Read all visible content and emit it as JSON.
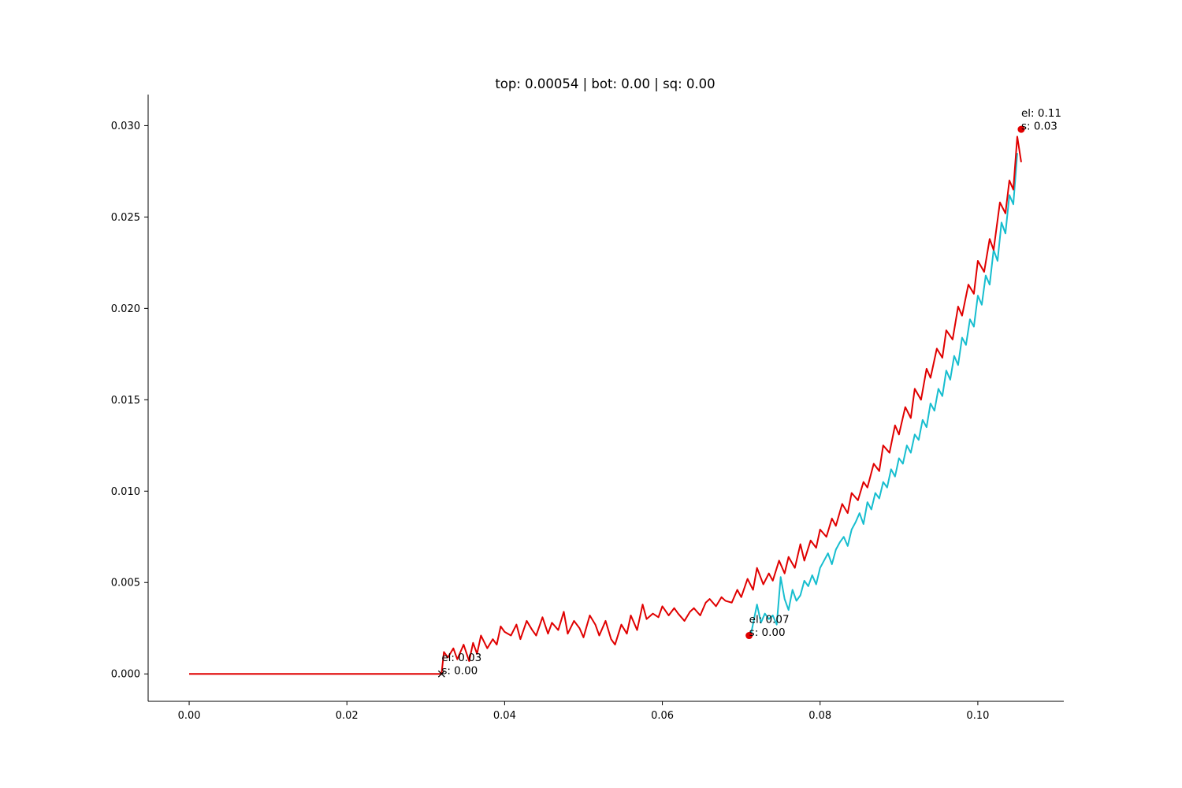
{
  "chart_data": {
    "type": "line",
    "title": "top: 0.00054 | bot: 0.00 | sq: 0.00",
    "xlabel": "",
    "ylabel": "",
    "xlim": [
      -0.0052,
      0.1109
    ],
    "ylim": [
      -0.0015,
      0.0317
    ],
    "x_ticks": [
      0.0,
      0.02,
      0.04,
      0.06,
      0.08,
      0.1
    ],
    "x_tick_labels": [
      "0.00",
      "0.02",
      "0.04",
      "0.06",
      "0.08",
      "0.10"
    ],
    "y_ticks": [
      0.0,
      0.005,
      0.01,
      0.015,
      0.02,
      0.025,
      0.03
    ],
    "y_tick_labels": [
      "0.000",
      "0.005",
      "0.010",
      "0.015",
      "0.020",
      "0.025",
      "0.030"
    ],
    "grid": false,
    "legend": "none",
    "spines": "left-bottom",
    "series": [
      {
        "color": "#e00000",
        "x": [
          0.0,
          0.008,
          0.016,
          0.024,
          0.032,
          0.0323,
          0.0328,
          0.0335,
          0.034,
          0.0348,
          0.0355,
          0.036,
          0.0365,
          0.037,
          0.0378,
          0.0385,
          0.039,
          0.0395,
          0.04,
          0.0408,
          0.0415,
          0.042,
          0.0428,
          0.0435,
          0.044,
          0.0448,
          0.0455,
          0.046,
          0.0468,
          0.0475,
          0.048,
          0.0488,
          0.0495,
          0.05,
          0.0508,
          0.0515,
          0.052,
          0.0528,
          0.0535,
          0.054,
          0.0548,
          0.0555,
          0.056,
          0.0568,
          0.0575,
          0.058,
          0.0588,
          0.0595,
          0.06,
          0.0608,
          0.0615,
          0.062,
          0.0628,
          0.0635,
          0.064,
          0.0648,
          0.0655,
          0.066,
          0.0668,
          0.0675,
          0.068,
          0.0688,
          0.0695,
          0.07,
          0.0708,
          0.0715,
          0.072,
          0.0728,
          0.0735,
          0.074,
          0.0748,
          0.0755,
          0.076,
          0.0768,
          0.0775,
          0.078,
          0.0788,
          0.0795,
          0.08,
          0.0808,
          0.0815,
          0.082,
          0.0828,
          0.0835,
          0.084,
          0.0848,
          0.0855,
          0.086,
          0.0868,
          0.0875,
          0.088,
          0.0888,
          0.0895,
          0.09,
          0.0908,
          0.0915,
          0.092,
          0.0928,
          0.0935,
          0.094,
          0.0948,
          0.0955,
          0.096,
          0.0968,
          0.0975,
          0.098,
          0.0988,
          0.0995,
          0.1,
          0.1008,
          0.1015,
          0.102,
          0.1028,
          0.1035,
          0.104,
          0.1045,
          0.105,
          0.1055
        ],
        "y": [
          0.0,
          0.0,
          0.0,
          0.0,
          0.0,
          0.0012,
          0.0009,
          0.0014,
          0.0008,
          0.0016,
          0.0007,
          0.0017,
          0.0011,
          0.0021,
          0.0014,
          0.0019,
          0.0016,
          0.0026,
          0.0023,
          0.0021,
          0.0027,
          0.0019,
          0.0029,
          0.0024,
          0.0021,
          0.0031,
          0.0022,
          0.0028,
          0.0024,
          0.0034,
          0.0022,
          0.0029,
          0.0025,
          0.002,
          0.0032,
          0.0027,
          0.0021,
          0.0029,
          0.0019,
          0.0016,
          0.0027,
          0.0022,
          0.0032,
          0.0024,
          0.0038,
          0.003,
          0.0033,
          0.0031,
          0.0037,
          0.0032,
          0.0036,
          0.0033,
          0.0029,
          0.0034,
          0.0036,
          0.0032,
          0.0039,
          0.0041,
          0.0037,
          0.0042,
          0.004,
          0.0039,
          0.0046,
          0.0042,
          0.0052,
          0.0046,
          0.0058,
          0.0049,
          0.0055,
          0.0051,
          0.0062,
          0.0055,
          0.0064,
          0.0058,
          0.0071,
          0.0062,
          0.0073,
          0.0069,
          0.0079,
          0.0075,
          0.0085,
          0.0081,
          0.0093,
          0.0088,
          0.0099,
          0.0095,
          0.0105,
          0.0102,
          0.0115,
          0.0111,
          0.0125,
          0.0121,
          0.0136,
          0.0131,
          0.0146,
          0.014,
          0.0156,
          0.015,
          0.0167,
          0.0162,
          0.0178,
          0.0173,
          0.0188,
          0.0183,
          0.0201,
          0.0196,
          0.0213,
          0.0208,
          0.0226,
          0.022,
          0.0238,
          0.0232,
          0.0258,
          0.0252,
          0.027,
          0.0265,
          0.0294,
          0.028
        ]
      },
      {
        "color": "#17becf",
        "x": [
          0.0712,
          0.072,
          0.0725,
          0.073,
          0.0735,
          0.074,
          0.0745,
          0.075,
          0.0755,
          0.076,
          0.0765,
          0.077,
          0.0775,
          0.078,
          0.0785,
          0.079,
          0.0795,
          0.08,
          0.0805,
          0.081,
          0.0815,
          0.082,
          0.0825,
          0.083,
          0.0835,
          0.084,
          0.0845,
          0.085,
          0.0855,
          0.086,
          0.0865,
          0.087,
          0.0875,
          0.088,
          0.0885,
          0.089,
          0.0895,
          0.09,
          0.0905,
          0.091,
          0.0915,
          0.092,
          0.0925,
          0.093,
          0.0935,
          0.094,
          0.0945,
          0.095,
          0.0955,
          0.096,
          0.0965,
          0.097,
          0.0975,
          0.098,
          0.0985,
          0.099,
          0.0995,
          0.1,
          0.1005,
          0.101,
          0.1015,
          0.102,
          0.1025,
          0.103,
          0.1035,
          0.104,
          0.1045,
          0.105
        ],
        "y": [
          0.0021,
          0.0038,
          0.0028,
          0.0033,
          0.003,
          0.0032,
          0.0027,
          0.0053,
          0.0041,
          0.0035,
          0.0046,
          0.004,
          0.0043,
          0.0051,
          0.0048,
          0.0054,
          0.0049,
          0.0058,
          0.0062,
          0.0066,
          0.006,
          0.0068,
          0.0072,
          0.0075,
          0.007,
          0.0079,
          0.0083,
          0.0088,
          0.0082,
          0.0094,
          0.009,
          0.0099,
          0.0096,
          0.0105,
          0.0102,
          0.0112,
          0.0108,
          0.0118,
          0.0115,
          0.0125,
          0.0121,
          0.0131,
          0.0128,
          0.0139,
          0.0135,
          0.0148,
          0.0144,
          0.0156,
          0.0152,
          0.0166,
          0.0161,
          0.0174,
          0.0169,
          0.0184,
          0.018,
          0.0194,
          0.019,
          0.0207,
          0.0202,
          0.0218,
          0.0213,
          0.0232,
          0.0226,
          0.0247,
          0.0241,
          0.0262,
          0.0257,
          0.0285
        ]
      }
    ],
    "markers": [
      {
        "shape": "x",
        "color": "#000000",
        "x": 0.032,
        "y": 0.0
      },
      {
        "shape": "circle",
        "color": "#e00000",
        "x": 0.071,
        "y": 0.0021
      },
      {
        "shape": "circle",
        "color": "#e00000",
        "x": 0.1055,
        "y": 0.0298
      }
    ],
    "annotations": [
      {
        "x": 0.032,
        "y": 0.0,
        "line1": "el: 0.03",
        "line2": "s: 0.00"
      },
      {
        "x": 0.071,
        "y": 0.0021,
        "line1": "el: 0.07",
        "line2": "s: 0.00"
      },
      {
        "x": 0.1055,
        "y": 0.0298,
        "line1": "el: 0.11",
        "line2": "s: 0.03"
      }
    ]
  }
}
